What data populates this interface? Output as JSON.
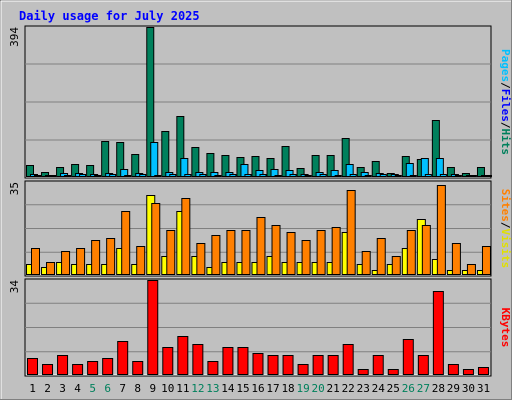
{
  "title": "Daily usage for July 2025",
  "colors": {
    "background": "#c0c0c0",
    "title": "#0000ff",
    "hits": "#00805c",
    "files": "#00c0ff",
    "pages": "#00c0ff",
    "visits": "#ffff00",
    "sites": "#ff8000",
    "kbytes": "#ff0000",
    "weekend_day": "#00805c",
    "weekday": "#000000"
  },
  "chart_data": [
    {
      "type": "bar",
      "panel": "hits-files-pages",
      "ymax_label": "394",
      "legend": {
        "pages": "Pages",
        "sep1": "/",
        "files": "Files",
        "sep2": "/",
        "hits": "Hits"
      },
      "ylim": [
        0,
        394
      ],
      "categories": [
        "1",
        "2",
        "3",
        "4",
        "5",
        "6",
        "7",
        "8",
        "9",
        "10",
        "11",
        "12",
        "13",
        "14",
        "15",
        "16",
        "17",
        "18",
        "19",
        "20",
        "21",
        "22",
        "23",
        "24",
        "25",
        "26",
        "27",
        "28",
        "29",
        "30",
        "31"
      ],
      "weekend_days": [
        5,
        6,
        12,
        13,
        19,
        20,
        26,
        27
      ],
      "series": [
        {
          "name": "Hits",
          "values": [
            32,
            14,
            27,
            34,
            31,
            95,
            93,
            60,
            394,
            120,
            160,
            79,
            63,
            58,
            53,
            54,
            49,
            82,
            24,
            58,
            57,
            103,
            26,
            43,
            10,
            55,
            47,
            151,
            27,
            10,
            27
          ]
        },
        {
          "name": "Files",
          "values": [
            8,
            6,
            10,
            10,
            9,
            11,
            22,
            10,
            93,
            12,
            49,
            12,
            12,
            12,
            33,
            18,
            22,
            18,
            7,
            14,
            18,
            34,
            14,
            10,
            9,
            37,
            50,
            50,
            8,
            6,
            6
          ]
        },
        {
          "name": "Pages",
          "values": [
            6,
            4,
            6,
            8,
            6,
            8,
            6,
            8,
            6,
            8,
            8,
            8,
            6,
            8,
            8,
            8,
            6,
            8,
            6,
            8,
            6,
            8,
            6,
            8,
            6,
            6,
            8,
            8,
            6,
            4,
            6
          ]
        }
      ]
    },
    {
      "type": "bar",
      "panel": "visits-sites",
      "ymax_label": "35",
      "legend": {
        "sites": "Sites",
        "sep": "/",
        "visits": "Visits"
      },
      "ylim": [
        0,
        35
      ],
      "series": [
        {
          "name": "Visits",
          "values": [
            4,
            3,
            5,
            4,
            4,
            4,
            10,
            4,
            30,
            7,
            24,
            7,
            3,
            5,
            5,
            5,
            7,
            5,
            5,
            5,
            5,
            16,
            4,
            2,
            4,
            10,
            21,
            6,
            2,
            2,
            2
          ]
        },
        {
          "name": "Sites",
          "values": [
            10,
            5,
            9,
            10,
            13,
            14,
            24,
            11,
            27,
            17,
            29,
            12,
            15,
            17,
            17,
            22,
            19,
            16,
            13,
            17,
            18,
            32,
            9,
            14,
            7,
            17,
            19,
            34,
            12,
            4,
            11
          ]
        }
      ]
    },
    {
      "type": "bar",
      "panel": "kbytes",
      "ymax_label": "34",
      "legend": {
        "kbytes": "KBytes"
      },
      "ylim": [
        0,
        34
      ],
      "series": [
        {
          "name": "KBytes",
          "values": [
            6,
            4,
            7,
            4,
            5,
            6,
            12,
            5,
            34,
            10,
            14,
            11,
            5,
            10,
            10,
            8,
            7,
            7,
            4,
            7,
            7,
            11,
            2,
            7,
            2,
            13,
            7,
            30,
            4,
            2,
            3
          ]
        }
      ]
    }
  ]
}
